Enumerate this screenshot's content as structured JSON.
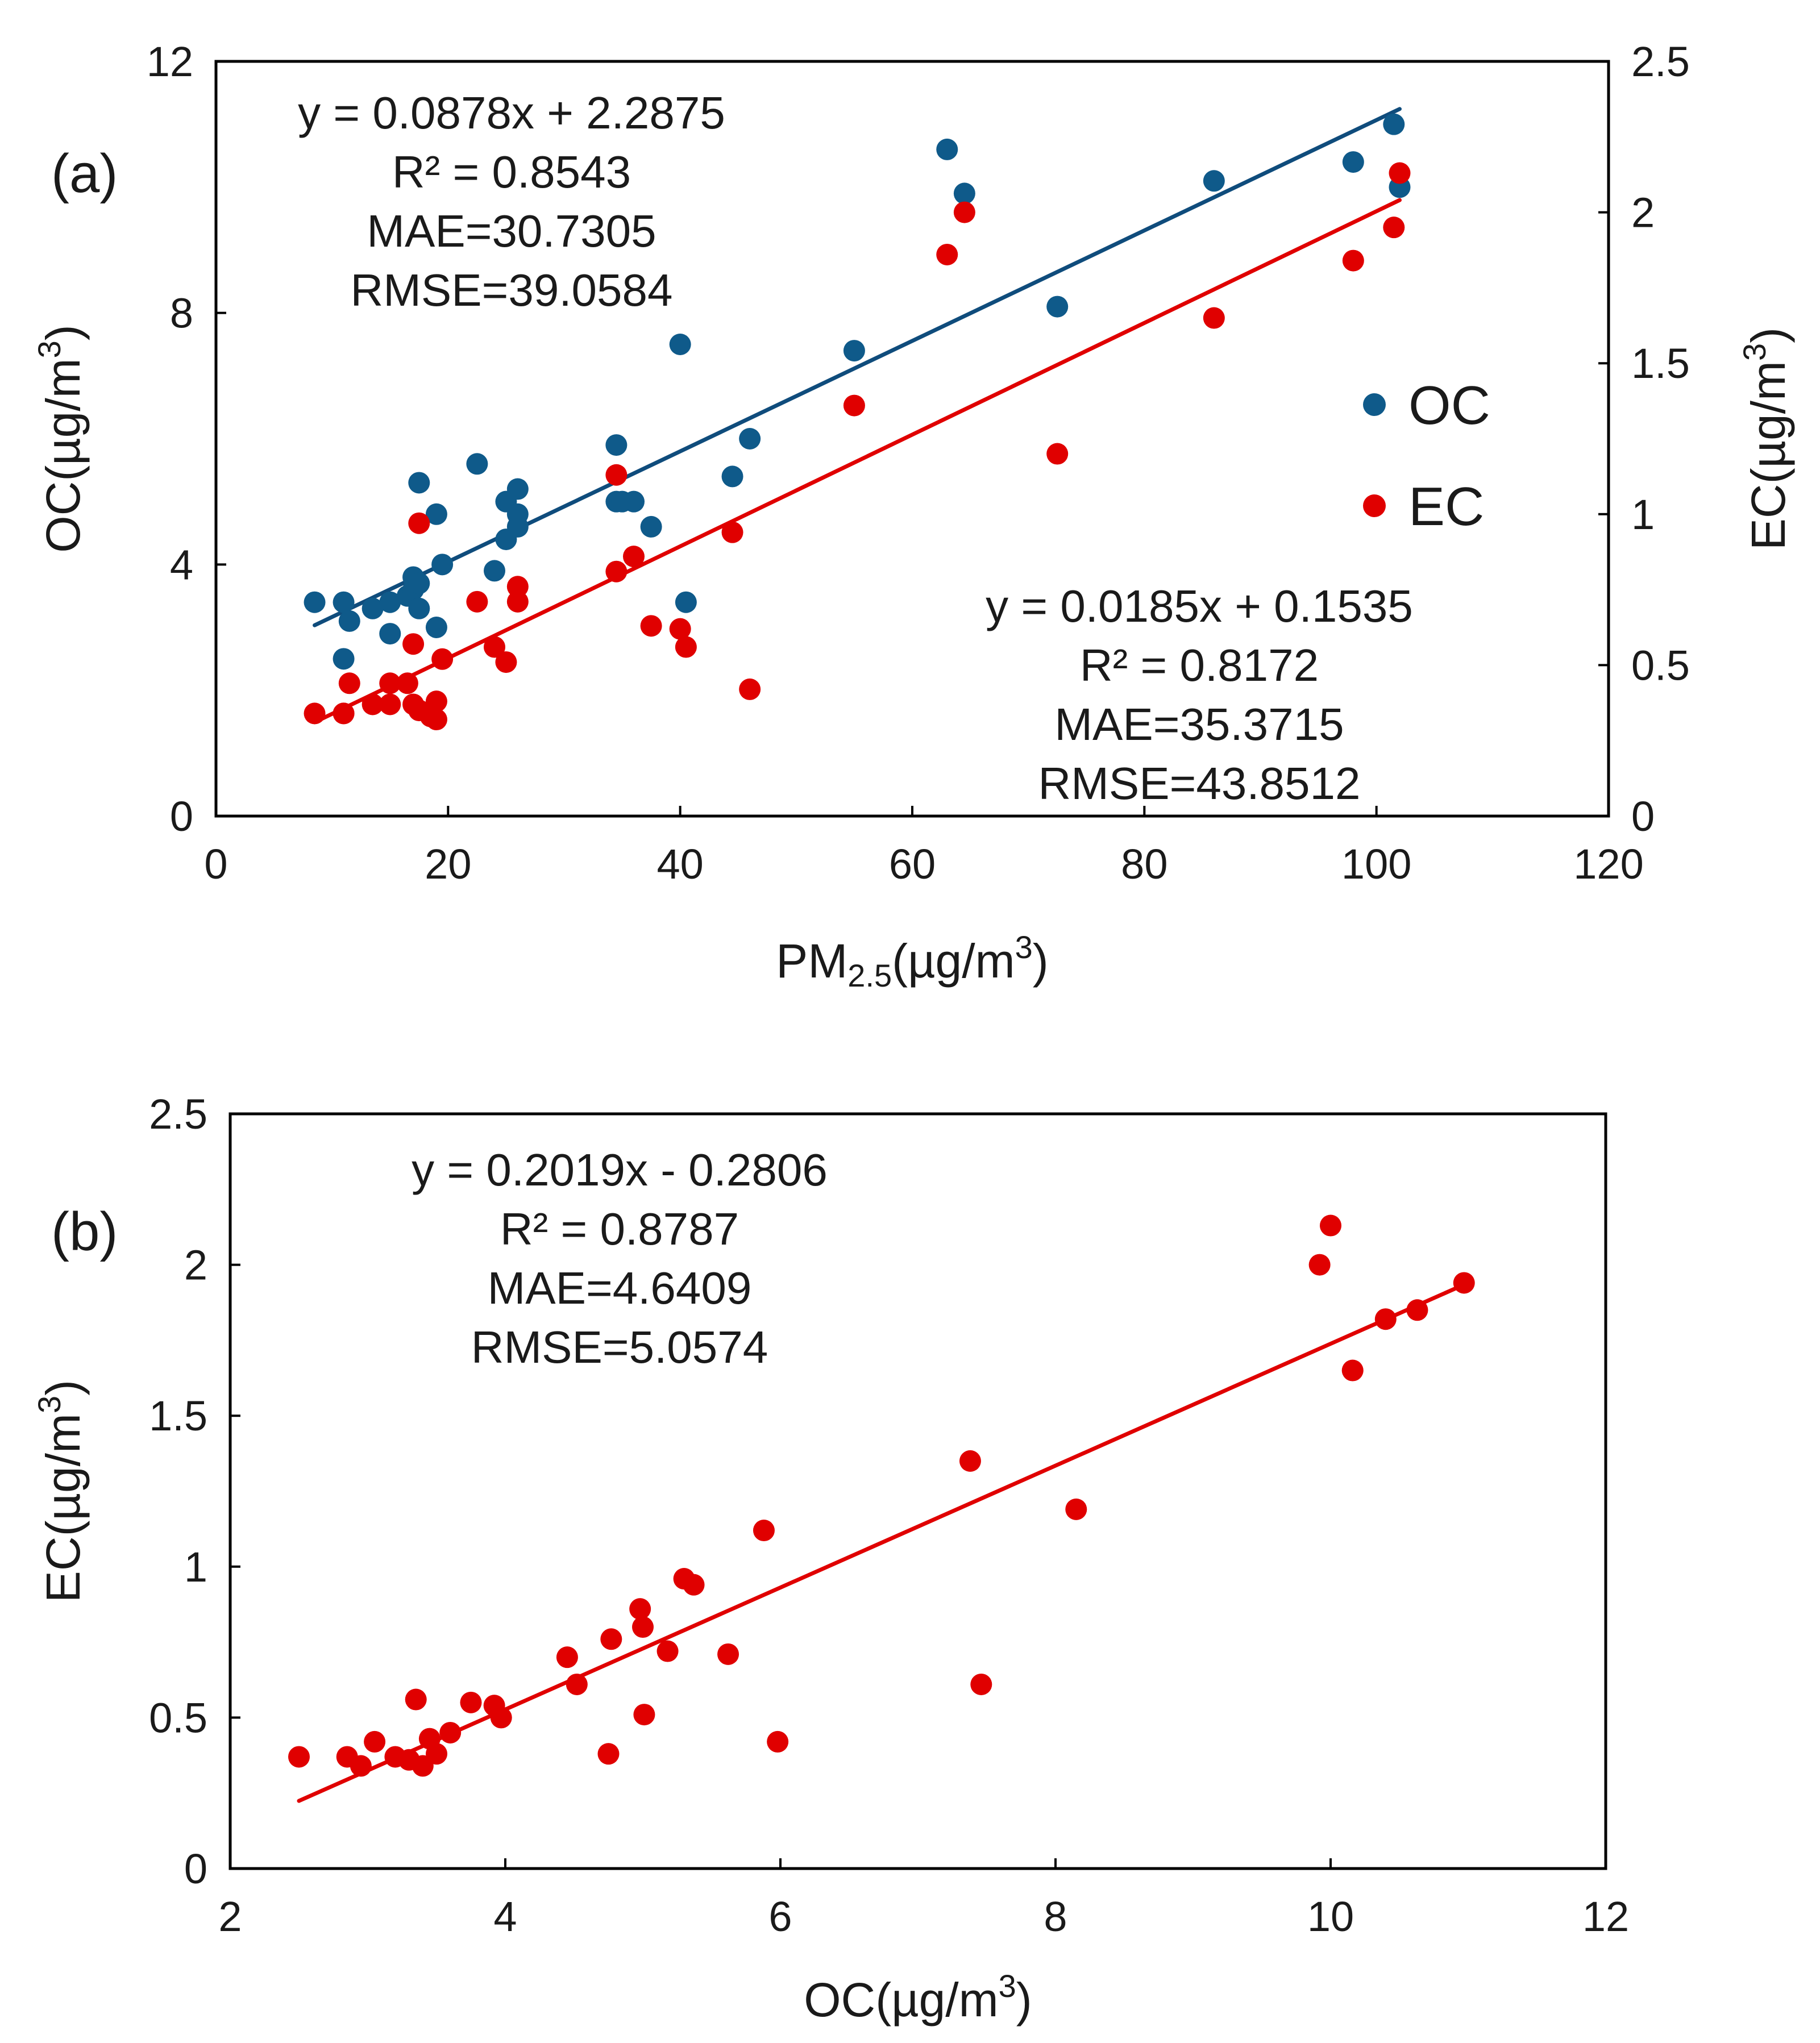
{
  "chart_data": [
    {
      "panel": "(a)",
      "type": "scatter",
      "xlabel": {
        "main": "PM",
        "sub": "2.5",
        "rest": "(µg/m",
        "sup": "3",
        "close": ")"
      },
      "ylabel_left": {
        "main": "OC(µg/m",
        "sup": "3",
        "close": ")"
      },
      "ylabel_right": {
        "main": "EC(µg/m",
        "sup": "3",
        "close": ")"
      },
      "xlim": [
        0,
        120
      ],
      "xticks": [
        0,
        20,
        40,
        60,
        80,
        100,
        120
      ],
      "ylim_left": [
        0,
        12
      ],
      "yticks_left": [
        0,
        4,
        8,
        12
      ],
      "ylim_right": [
        0,
        2.5
      ],
      "yticks_right": [
        0,
        0.5,
        1,
        1.5,
        2,
        2.5
      ],
      "legend": {
        "location": "right-middle",
        "entries": [
          "OC",
          "EC"
        ]
      },
      "series": [
        {
          "name": "OC",
          "axis": "left",
          "color": "#0f5a8a",
          "x": [
            8.5,
            11,
            11.5,
            11,
            13.5,
            15,
            15,
            16.5,
            17,
            17,
            17.5,
            17.5,
            17.5,
            19,
            19,
            19.5,
            22.5,
            24,
            25,
            25,
            26,
            26,
            26,
            34.5,
            34.5,
            35,
            36,
            37.5,
            40,
            40.5,
            44.5,
            46,
            55,
            63,
            64.5,
            72.5,
            86,
            98,
            101.5,
            102
          ],
          "y": [
            3.4,
            3.4,
            3.1,
            2.5,
            3.3,
            2.9,
            3.4,
            3.5,
            3.6,
            3.8,
            3.7,
            3.3,
            5.3,
            3.0,
            4.8,
            4.0,
            5.6,
            3.9,
            4.4,
            5.0,
            4.6,
            4.8,
            5.2,
            5.9,
            5.0,
            5.0,
            5.0,
            4.6,
            7.5,
            3.4,
            5.4,
            6.0,
            7.4,
            10.6,
            9.9,
            8.1,
            10.1,
            10.4,
            11.0,
            10.0
          ]
        },
        {
          "name": "EC",
          "axis": "right",
          "color": "#e00000",
          "x": [
            8.5,
            11,
            11.5,
            11,
            13.5,
            15,
            15,
            16.5,
            17,
            17,
            17.5,
            17.5,
            18.5,
            19,
            19,
            19.5,
            22.5,
            24,
            25,
            26,
            26,
            34.5,
            34.5,
            36,
            37.5,
            40,
            40.5,
            44.5,
            46,
            55,
            63,
            64.5,
            72.5,
            86,
            98,
            101.5,
            102
          ],
          "y": [
            0.34,
            0.34,
            0.44,
            0.34,
            0.37,
            0.37,
            0.44,
            0.44,
            0.57,
            0.37,
            0.35,
            0.97,
            0.33,
            0.38,
            0.32,
            0.52,
            0.71,
            0.56,
            0.51,
            0.71,
            0.76,
            1.13,
            0.81,
            0.86,
            0.63,
            0.62,
            0.56,
            0.94,
            0.42,
            1.36,
            1.86,
            2.0,
            1.2,
            1.65,
            1.84,
            1.95,
            2.13
          ]
        }
      ],
      "trendlines": [
        {
          "series": "OC",
          "slope": 0.0878,
          "intercept": 2.2875,
          "x_range": [
            8.5,
            102
          ],
          "color": "#0f4c7c"
        },
        {
          "series": "EC",
          "slope": 0.0185,
          "intercept": 0.1535,
          "x_range": [
            8.5,
            102
          ],
          "color": "#e00000"
        }
      ],
      "annotations": [
        {
          "location": "top-left",
          "lines": [
            "y = 0.0878x + 2.2875",
            "R² = 0.8543",
            "MAE=30.7305",
            "RMSE=39.0584"
          ]
        },
        {
          "location": "bottom-right",
          "lines": [
            "y = 0.0185x + 0.1535",
            "R² = 0.8172",
            "MAE=35.3715",
            "RMSE=43.8512"
          ]
        }
      ]
    },
    {
      "panel": "(b)",
      "type": "scatter",
      "xlabel": {
        "main": "OC(µg/m",
        "sup": "3",
        "close": ")"
      },
      "ylabel": {
        "main": "EC(µg/m",
        "sup": "3",
        "close": ")"
      },
      "xlim": [
        2,
        12
      ],
      "xticks": [
        2,
        4,
        6,
        8,
        10,
        12
      ],
      "ylim": [
        0,
        2.5
      ],
      "yticks": [
        0,
        0.5,
        1,
        1.5,
        2,
        2.5
      ],
      "series": [
        {
          "name": "EC",
          "color": "#e00000",
          "x": [
            2.5,
            2.85,
            2.95,
            3.05,
            3.2,
            3.3,
            3.35,
            3.4,
            3.45,
            3.5,
            3.6,
            3.75,
            3.92,
            3.97,
            4.45,
            4.52,
            4.75,
            4.77,
            4.98,
            5.0,
            5.01,
            5.18,
            5.3,
            5.37,
            5.62,
            5.88,
            5.98,
            7.38,
            7.46,
            8.15,
            9.92,
            10.0,
            10.16,
            10.4,
            10.63,
            10.97
          ],
          "y": [
            0.37,
            0.37,
            0.34,
            0.42,
            0.37,
            0.36,
            0.56,
            0.34,
            0.43,
            0.38,
            0.45,
            0.55,
            0.54,
            0.5,
            0.7,
            0.61,
            0.38,
            0.76,
            0.86,
            0.8,
            0.51,
            0.72,
            0.96,
            0.94,
            0.71,
            1.12,
            0.42,
            1.35,
            0.61,
            1.19,
            2.0,
            2.13,
            1.65,
            1.82,
            1.85,
            1.94
          ]
        }
      ],
      "trendlines": [
        {
          "series": "EC",
          "slope": 0.2019,
          "intercept": -0.2806,
          "x_range": [
            2.5,
            11
          ],
          "color": "#e00000"
        }
      ],
      "annotations": [
        {
          "location": "top-left",
          "lines": [
            "y = 0.2019x - 0.2806",
            "R² = 0.8787",
            "MAE=4.6409",
            "RMSE=5.0574"
          ]
        }
      ]
    }
  ]
}
